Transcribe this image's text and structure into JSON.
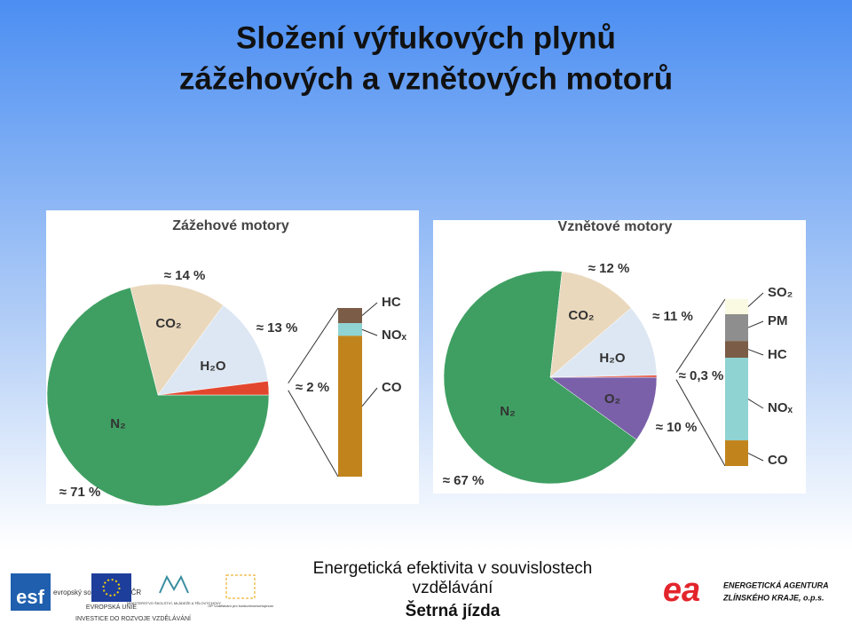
{
  "title": [
    "Složení výfukových plynů",
    "zážehových a vznětových motorů"
  ],
  "chart_data": [
    {
      "type": "pie",
      "title": "Zážehové motory",
      "categories": [
        "N₂",
        "CO₂",
        "H₂O",
        null
      ],
      "values": [
        71,
        14,
        13,
        2
      ],
      "value_labels": [
        "≈ 71 %",
        "≈ 14 %",
        "≈ 13 %",
        "≈ 2 %"
      ],
      "colors": [
        "#3f9f62",
        "#ead8bd",
        "#dde7f3",
        "#e2472e"
      ],
      "breakdown": {
        "categories": [
          "HC",
          "NOₓ",
          "CO"
        ],
        "values": [
          0.18,
          0.15,
          1.67
        ],
        "colors": [
          "#7b5c46",
          "#8fd3d3",
          "#c1841d"
        ]
      }
    },
    {
      "type": "pie",
      "title": "Vznětové motory",
      "categories": [
        "O₂",
        "N₂",
        "CO₂",
        "H₂O",
        null
      ],
      "values": [
        10,
        67,
        12,
        11,
        0.3
      ],
      "value_labels": [
        "≈ 10 %",
        "≈ 67 %",
        "≈ 12 %",
        "≈ 11 %",
        "≈ 0,3 %"
      ],
      "colors": [
        "#7a5fa9",
        "#3f9f62",
        "#ead8bd",
        "#dde7f3",
        "#e2472e"
      ],
      "breakdown": {
        "categories": [
          "SO₂",
          "PM",
          "HC",
          "NOₓ",
          "CO"
        ],
        "values": [
          0.027,
          0.048,
          0.03,
          0.148,
          0.046
        ],
        "colors": [
          "#fafae2",
          "#8e8e8e",
          "#7b5c46",
          "#8fd3d3",
          "#c1841d"
        ]
      }
    }
  ],
  "footer": {
    "center": [
      "Energetická efektivita v souvislostech",
      "vzdělávání",
      "Šetrná jízda"
    ],
    "logos": [
      "esf",
      "evropský sociální fond v ČR",
      "EVROPSKÁ UNIE",
      "MINISTERSTVO ŠKOLSTVÍ, MLÁDEŽE A TĚLOVÝCHOVY",
      "OP Vzdělávání pro konkurenceschopnost",
      "INVESTICE DO ROZVOJE VZDĚLÁVÁNÍ"
    ],
    "agency": [
      "ea",
      "ENERGETICKÁ AGENTURA",
      "ZLÍNSKÉHO KRAJE, o.p.s."
    ]
  }
}
